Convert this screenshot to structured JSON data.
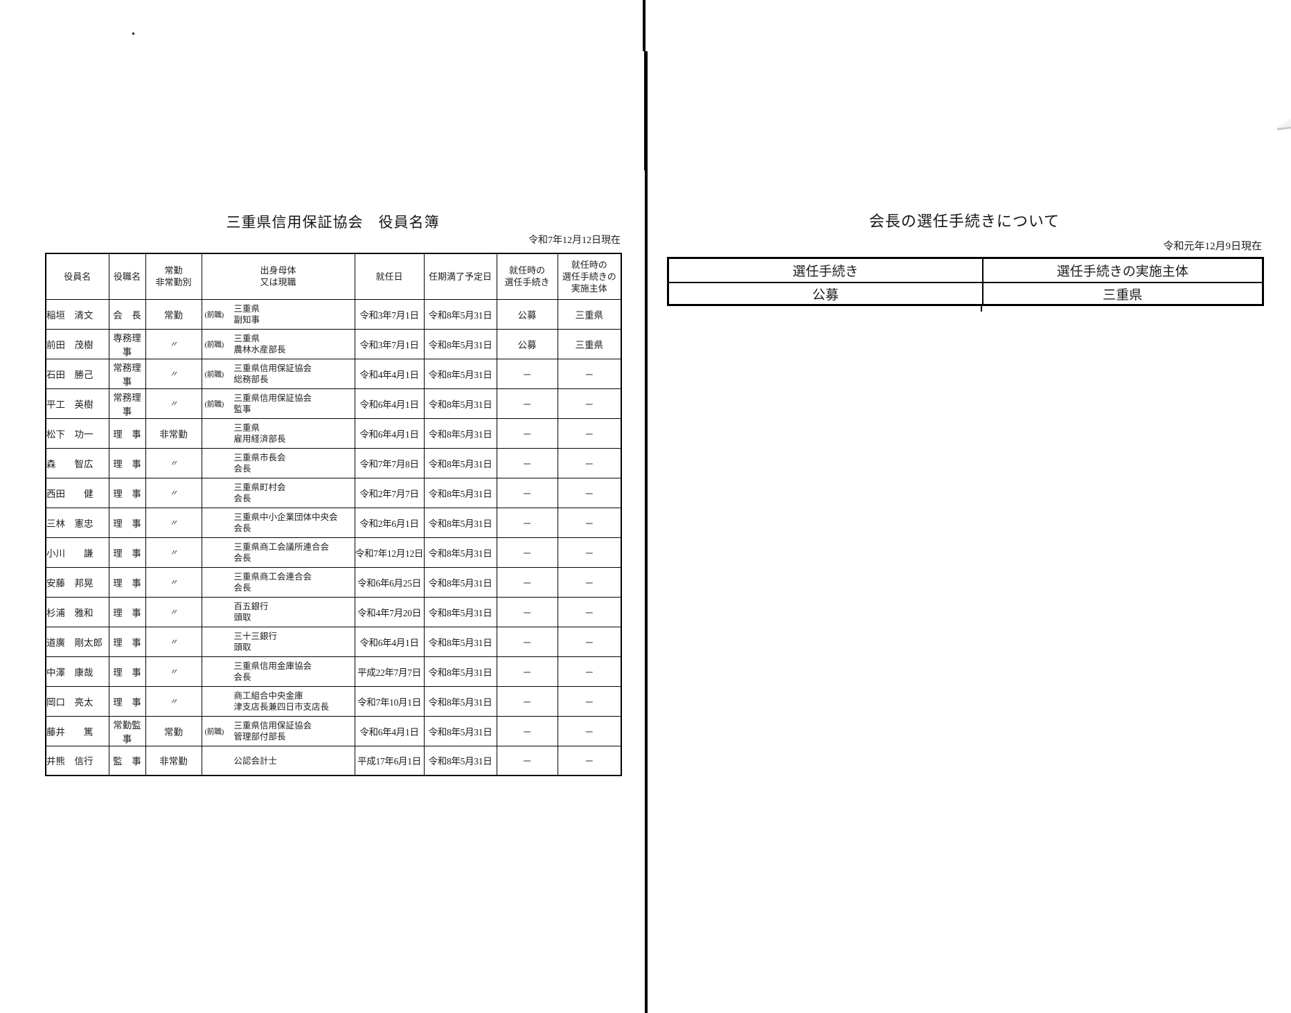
{
  "left_page": {
    "title": "三重県信用保証協会　役員名簿",
    "as_of_date": "令和7年12月12日現在",
    "roster_table": {
      "headers": [
        "役員名",
        "役職名",
        "常勤\n非常勤別",
        "出身母体\n又は現職",
        "就任日",
        "任期満了予定日",
        "就任時の\n選任手続き",
        "就任時の\n選任手続きの\n実施主体"
      ],
      "rows": [
        {
          "name": "稲垣　清文",
          "position": "会　長",
          "duty": "常勤",
          "origin_prefix": "(前職)",
          "origin_org": "三重県",
          "origin_title": "副知事",
          "appointed": "令和3年7月1日",
          "term_end": "令和8年5月31日",
          "procedure": "公募",
          "procedure_body": "三重県"
        },
        {
          "name": "前田　茂樹",
          "position": "専務理事",
          "duty": "〃",
          "origin_prefix": "(前職)",
          "origin_org": "三重県",
          "origin_title": "農林水産部長",
          "appointed": "令和3年7月1日",
          "term_end": "令和8年5月31日",
          "procedure": "公募",
          "procedure_body": "三重県"
        },
        {
          "name": "石田　勝己",
          "position": "常務理事",
          "duty": "〃",
          "origin_prefix": "(前職)",
          "origin_org": "三重県信用保証協会",
          "origin_title": "総務部長",
          "appointed": "令和4年4月1日",
          "term_end": "令和8年5月31日",
          "procedure": "－",
          "procedure_body": "－"
        },
        {
          "name": "平工　英樹",
          "position": "常務理事",
          "duty": "〃",
          "origin_prefix": "(前職)",
          "origin_org": "三重県信用保証協会",
          "origin_title": "監事",
          "appointed": "令和6年4月1日",
          "term_end": "令和8年5月31日",
          "procedure": "－",
          "procedure_body": "－"
        },
        {
          "name": "松下　功一",
          "position": "理　事",
          "duty": "非常勤",
          "origin_prefix": "",
          "origin_org": "三重県",
          "origin_title": "雇用経済部長",
          "appointed": "令和6年4月1日",
          "term_end": "令和8年5月31日",
          "procedure": "－",
          "procedure_body": "－"
        },
        {
          "name": "森　　智広",
          "position": "理　事",
          "duty": "〃",
          "origin_prefix": "",
          "origin_org": "三重県市長会",
          "origin_title": "会長",
          "appointed": "令和7年7月8日",
          "term_end": "令和8年5月31日",
          "procedure": "－",
          "procedure_body": "－"
        },
        {
          "name": "西田　　健",
          "position": "理　事",
          "duty": "〃",
          "origin_prefix": "",
          "origin_org": "三重県町村会",
          "origin_title": "会長",
          "appointed": "令和2年7月7日",
          "term_end": "令和8年5月31日",
          "procedure": "－",
          "procedure_body": "－"
        },
        {
          "name": "三林　憲忠",
          "position": "理　事",
          "duty": "〃",
          "origin_prefix": "",
          "origin_org": "三重県中小企業団体中央会",
          "origin_title": "会長",
          "appointed": "令和2年6月1日",
          "term_end": "令和8年5月31日",
          "procedure": "－",
          "procedure_body": "－"
        },
        {
          "name": "小川　　謙",
          "position": "理　事",
          "duty": "〃",
          "origin_prefix": "",
          "origin_org": "三重県商工会議所連合会",
          "origin_title": "会長",
          "appointed": "令和7年12月12日",
          "term_end": "令和8年5月31日",
          "procedure": "－",
          "procedure_body": "－"
        },
        {
          "name": "安藤　邦晃",
          "position": "理　事",
          "duty": "〃",
          "origin_prefix": "",
          "origin_org": "三重県商工会連合会",
          "origin_title": "会長",
          "appointed": "令和6年6月25日",
          "term_end": "令和8年5月31日",
          "procedure": "－",
          "procedure_body": "－"
        },
        {
          "name": "杉浦　雅和",
          "position": "理　事",
          "duty": "〃",
          "origin_prefix": "",
          "origin_org": "百五銀行",
          "origin_title": "頭取",
          "appointed": "令和4年7月20日",
          "term_end": "令和8年5月31日",
          "procedure": "－",
          "procedure_body": "－"
        },
        {
          "name": "道廣　剛太郎",
          "position": "理　事",
          "duty": "〃",
          "origin_prefix": "",
          "origin_org": "三十三銀行",
          "origin_title": "頭取",
          "appointed": "令和6年4月1日",
          "term_end": "令和8年5月31日",
          "procedure": "－",
          "procedure_body": "－"
        },
        {
          "name": "中澤　康哉",
          "position": "理　事",
          "duty": "〃",
          "origin_prefix": "",
          "origin_org": "三重県信用金庫協会",
          "origin_title": "会長",
          "appointed": "平成22年7月7日",
          "term_end": "令和8年5月31日",
          "procedure": "－",
          "procedure_body": "－"
        },
        {
          "name": "岡口　亮太",
          "position": "理　事",
          "duty": "〃",
          "origin_prefix": "",
          "origin_org": "商工組合中央金庫",
          "origin_title": "津支店長兼四日市支店長",
          "appointed": "令和7年10月1日",
          "term_end": "令和8年5月31日",
          "procedure": "－",
          "procedure_body": "－"
        },
        {
          "name": "藤井　　篤",
          "position": "常勤監事",
          "duty": "常勤",
          "origin_prefix": "(前職)",
          "origin_org": "三重県信用保証協会",
          "origin_title": "管理部付部長",
          "appointed": "令和6年4月1日",
          "term_end": "令和8年5月31日",
          "procedure": "－",
          "procedure_body": "－"
        },
        {
          "name": "井熊　信行",
          "position": "監　事",
          "duty": "非常勤",
          "origin_prefix": "",
          "origin_org": "公認会計士",
          "origin_title": "",
          "appointed": "平成17年6月1日",
          "term_end": "令和8年5月31日",
          "procedure": "－",
          "procedure_body": "－"
        }
      ]
    }
  },
  "right_page": {
    "title": "会長の選任手続きについて",
    "as_of_date": "令和元年12月9日現在",
    "procedure_table": {
      "headers": [
        "選任手続き",
        "選任手続きの実施主体"
      ],
      "rows": [
        [
          "公募",
          "三重県"
        ]
      ]
    }
  }
}
